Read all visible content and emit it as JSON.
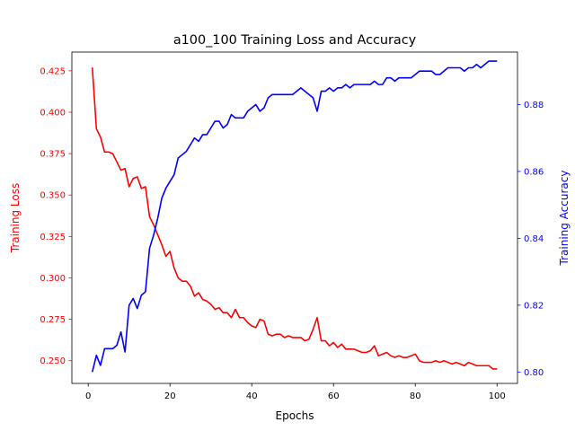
{
  "chart_data": {
    "type": "line",
    "title": "a100_100 Training Loss and Accuracy",
    "xlabel": "Epochs",
    "xlim": [
      -4,
      105
    ],
    "xticks": [
      0,
      20,
      40,
      60,
      80,
      100
    ],
    "grid": false,
    "left_axis": {
      "label": "Training Loss",
      "color": "#ff0000",
      "ylim": [
        0.2363,
        0.4363
      ],
      "ticks": [
        "0.250",
        "0.275",
        "0.300",
        "0.325",
        "0.350",
        "0.375",
        "0.400",
        "0.425"
      ]
    },
    "right_axis": {
      "label": "Training Accuracy",
      "color": "#0000ff",
      "ylim": [
        0.7966,
        0.8957
      ],
      "ticks": [
        "0.80",
        "0.82",
        "0.84",
        "0.86",
        "0.88"
      ]
    },
    "series": [
      {
        "axis": "left",
        "color": "#ff0000",
        "x": [
          1,
          2,
          3,
          4,
          5,
          6,
          7,
          8,
          9,
          10,
          11,
          12,
          13,
          14,
          15,
          16,
          17,
          18,
          19,
          20,
          21,
          22,
          23,
          24,
          25,
          26,
          27,
          28,
          29,
          30,
          31,
          32,
          33,
          34,
          35,
          36,
          37,
          38,
          39,
          40,
          41,
          42,
          43,
          44,
          45,
          46,
          47,
          48,
          49,
          50,
          51,
          52,
          53,
          54,
          55,
          56,
          57,
          58,
          59,
          60,
          61,
          62,
          63,
          64,
          65,
          66,
          67,
          68,
          69,
          70,
          71,
          72,
          73,
          74,
          75,
          76,
          77,
          78,
          79,
          80,
          81,
          82,
          83,
          84,
          85,
          86,
          87,
          88,
          89,
          90,
          91,
          92,
          93,
          94,
          95,
          96,
          97,
          98,
          99,
          100
        ],
        "values": [
          0.427,
          0.39,
          0.385,
          0.376,
          0.376,
          0.375,
          0.37,
          0.365,
          0.366,
          0.355,
          0.36,
          0.361,
          0.354,
          0.355,
          0.337,
          0.332,
          0.326,
          0.32,
          0.313,
          0.316,
          0.306,
          0.3,
          0.298,
          0.298,
          0.295,
          0.289,
          0.291,
          0.287,
          0.286,
          0.284,
          0.281,
          0.282,
          0.279,
          0.279,
          0.276,
          0.281,
          0.276,
          0.276,
          0.273,
          0.271,
          0.27,
          0.275,
          0.274,
          0.266,
          0.265,
          0.266,
          0.266,
          0.264,
          0.265,
          0.264,
          0.264,
          0.264,
          0.262,
          0.263,
          0.269,
          0.276,
          0.262,
          0.262,
          0.259,
          0.261,
          0.258,
          0.26,
          0.257,
          0.257,
          0.257,
          0.256,
          0.255,
          0.255,
          0.256,
          0.259,
          0.253,
          0.254,
          0.255,
          0.253,
          0.252,
          0.253,
          0.252,
          0.252,
          0.253,
          0.254,
          0.25,
          0.249,
          0.249,
          0.249,
          0.25,
          0.249,
          0.25,
          0.249,
          0.248,
          0.249,
          0.248,
          0.247,
          0.249,
          0.248,
          0.247,
          0.247,
          0.247,
          0.247,
          0.245,
          0.245
        ]
      },
      {
        "axis": "right",
        "color": "#0000ff",
        "x": [
          1,
          2,
          3,
          4,
          5,
          6,
          7,
          8,
          9,
          10,
          11,
          12,
          13,
          14,
          15,
          16,
          17,
          18,
          19,
          20,
          21,
          22,
          23,
          24,
          25,
          26,
          27,
          28,
          29,
          30,
          31,
          32,
          33,
          34,
          35,
          36,
          37,
          38,
          39,
          40,
          41,
          42,
          43,
          44,
          45,
          46,
          47,
          48,
          49,
          50,
          51,
          52,
          53,
          54,
          55,
          56,
          57,
          58,
          59,
          60,
          61,
          62,
          63,
          64,
          65,
          66,
          67,
          68,
          69,
          70,
          71,
          72,
          73,
          74,
          75,
          76,
          77,
          78,
          79,
          80,
          81,
          82,
          83,
          84,
          85,
          86,
          87,
          88,
          89,
          90,
          91,
          92,
          93,
          94,
          95,
          96,
          97,
          98,
          99,
          100
        ],
        "values": [
          0.8,
          0.805,
          0.802,
          0.807,
          0.807,
          0.807,
          0.808,
          0.812,
          0.806,
          0.82,
          0.822,
          0.819,
          0.823,
          0.824,
          0.837,
          0.841,
          0.846,
          0.852,
          0.855,
          0.857,
          0.859,
          0.864,
          0.865,
          0.866,
          0.868,
          0.87,
          0.869,
          0.871,
          0.871,
          0.873,
          0.875,
          0.875,
          0.873,
          0.874,
          0.877,
          0.876,
          0.876,
          0.876,
          0.878,
          0.879,
          0.88,
          0.878,
          0.879,
          0.882,
          0.883,
          0.883,
          0.883,
          0.883,
          0.883,
          0.883,
          0.884,
          0.885,
          0.884,
          0.883,
          0.882,
          0.878,
          0.884,
          0.884,
          0.885,
          0.884,
          0.885,
          0.885,
          0.886,
          0.885,
          0.886,
          0.886,
          0.886,
          0.886,
          0.886,
          0.887,
          0.886,
          0.886,
          0.888,
          0.888,
          0.887,
          0.888,
          0.888,
          0.888,
          0.888,
          0.889,
          0.89,
          0.89,
          0.89,
          0.89,
          0.889,
          0.889,
          0.89,
          0.891,
          0.891,
          0.891,
          0.891,
          0.89,
          0.891,
          0.891,
          0.892,
          0.891,
          0.892,
          0.893,
          0.893,
          0.893
        ]
      }
    ]
  }
}
